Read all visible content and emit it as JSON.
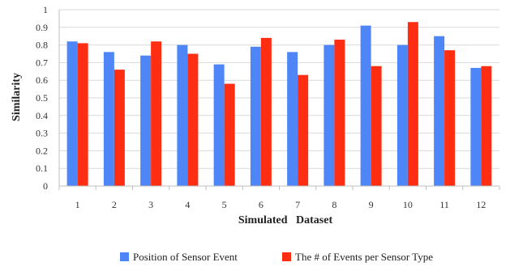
{
  "chart_data": {
    "type": "bar",
    "title": "",
    "xlabel": "Simulated   Dataset",
    "ylabel": "Similarity",
    "categories": [
      "1",
      "2",
      "3",
      "4",
      "5",
      "6",
      "7",
      "8",
      "9",
      "10",
      "11",
      "12"
    ],
    "ylim": [
      0,
      1
    ],
    "yticks": [
      "0",
      "0.1",
      "0.2",
      "0.3",
      "0.4",
      "0.5",
      "0.6",
      "0.7",
      "0.8",
      "0.9",
      "1"
    ],
    "grid": "horizontal",
    "legend_position": "bottom",
    "series": [
      {
        "name": "Position of Sensor Event",
        "color": "#4f86f7",
        "values": [
          0.82,
          0.76,
          0.74,
          0.8,
          0.69,
          0.79,
          0.76,
          0.8,
          0.91,
          0.8,
          0.85,
          0.67
        ]
      },
      {
        "name": "The # of Events per Sensor Type",
        "color": "#ff2d12",
        "values": [
          0.81,
          0.66,
          0.82,
          0.75,
          0.58,
          0.84,
          0.63,
          0.83,
          0.68,
          0.93,
          0.77,
          0.68
        ]
      }
    ]
  }
}
